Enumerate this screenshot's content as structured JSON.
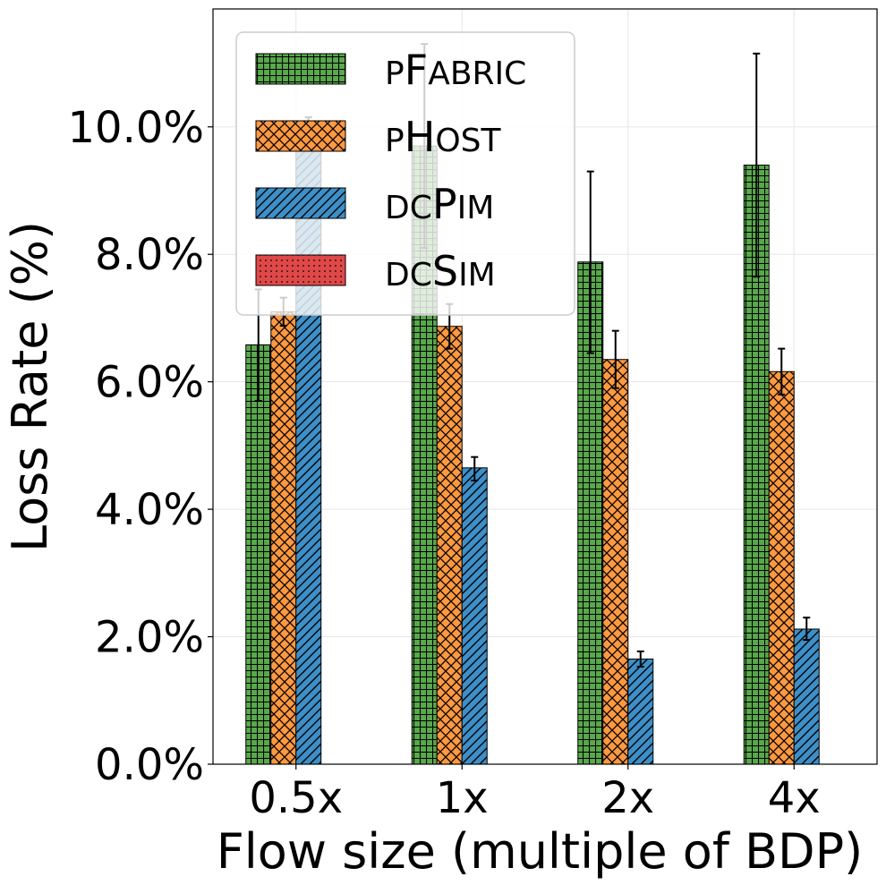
{
  "chart_data": {
    "type": "bar",
    "title": "",
    "xlabel": "Flow size (multiple of BDP)",
    "ylabel": "Loss Rate (%)",
    "categories": [
      "0.5x",
      "1x",
      "2x",
      "4x"
    ],
    "ylim": [
      0,
      11.85
    ],
    "yticks": [
      0,
      2,
      4,
      6,
      8,
      10
    ],
    "ytick_labels": [
      "0.0%",
      "2.0%",
      "4.0%",
      "6.0%",
      "8.0%",
      "10.0%"
    ],
    "grid": true,
    "legend_position": "top-left",
    "series": [
      {
        "name": "pFabric",
        "name_parts": [
          [
            "p",
            "sc"
          ],
          [
            "F",
            "big"
          ],
          [
            "abric",
            "sc"
          ]
        ],
        "values": [
          6.58,
          9.7,
          7.88,
          9.4
        ],
        "err_low": [
          5.7,
          8.1,
          6.45,
          7.65
        ],
        "err_high": [
          7.45,
          11.3,
          9.3,
          11.15
        ],
        "color": "#59a84b",
        "pattern": "grid"
      },
      {
        "name": "pHost",
        "name_parts": [
          [
            "p",
            "sc"
          ],
          [
            "H",
            "big"
          ],
          [
            "ost",
            "sc"
          ]
        ],
        "values": [
          7.1,
          6.87,
          6.35,
          6.16
        ],
        "err_low": [
          6.88,
          6.52,
          5.9,
          5.8
        ],
        "err_high": [
          7.32,
          7.22,
          6.8,
          6.52
        ],
        "color": "#ff9940",
        "pattern": "crosshatch"
      },
      {
        "name": "dcPim",
        "name_parts": [
          [
            "dc",
            "sc"
          ],
          [
            "P",
            "big"
          ],
          [
            "im",
            "sc"
          ]
        ],
        "values": [
          10.0,
          4.65,
          1.65,
          2.12
        ],
        "err_low": [
          9.8,
          4.45,
          1.53,
          1.95
        ],
        "err_high": [
          10.15,
          4.82,
          1.77,
          2.3
        ],
        "color": "#3c8fc8",
        "pattern": "diagonal"
      },
      {
        "name": "dcSim",
        "name_parts": [
          [
            "dc",
            "sc"
          ],
          [
            "S",
            "big"
          ],
          [
            "im",
            "sc"
          ]
        ],
        "values": [
          0.0,
          0.0,
          0.0,
          0.0
        ],
        "color": "#e04848",
        "pattern": "dots"
      }
    ]
  }
}
